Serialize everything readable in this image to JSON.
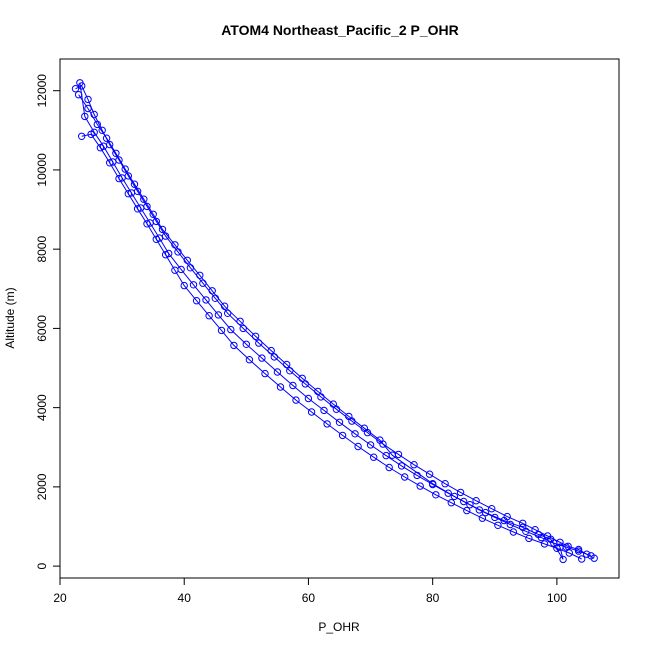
{
  "chart_data": {
    "type": "scatter",
    "title": "ATOM4 Northeast_Pacific_2 P_OHR",
    "xlabel": "P_OHR",
    "ylabel": "Altitude (m)",
    "xlim": [
      20,
      110
    ],
    "ylim": [
      -300,
      12800
    ],
    "x_ticks": [
      20,
      40,
      60,
      80,
      100
    ],
    "y_ticks": [
      0,
      2000,
      4000,
      6000,
      8000,
      10000,
      12000
    ],
    "grid": false,
    "legend": "none",
    "series_color": "#0000ff",
    "marker": "open-circle",
    "connected": true,
    "series": [
      {
        "x": [
          106,
          104.8,
          103.5,
          101.8,
          100.5,
          98.5,
          96.5,
          94.5,
          92,
          89.5,
          87,
          84.5,
          82,
          79.5,
          77,
          74.5,
          72,
          69.5,
          67,
          64.5,
          62,
          59.5,
          57,
          54.5,
          52,
          49.5,
          47,
          45,
          43,
          41,
          39,
          37,
          35.5,
          34,
          32.5,
          31,
          29.5,
          28,
          26.8,
          25.5,
          24.5,
          23.5,
          22.5
        ],
        "y": [
          200,
          300,
          420,
          500,
          600,
          760,
          920,
          1080,
          1250,
          1450,
          1650,
          1860,
          2080,
          2320,
          2560,
          2820,
          3080,
          3370,
          3660,
          3960,
          4270,
          4600,
          4930,
          5280,
          5630,
          6000,
          6380,
          6760,
          7140,
          7530,
          7930,
          8330,
          8700,
          9080,
          9460,
          9850,
          10250,
          10640,
          11000,
          11400,
          11780,
          12120,
          12050
        ]
      },
      {
        "x": [
          105.5,
          103.5,
          101.5,
          99.5,
          97.5,
          95,
          92.5,
          90,
          87.5,
          85,
          82.5,
          80,
          77.5,
          75,
          72.5,
          70,
          67.5,
          65,
          62.5,
          60,
          57.5,
          55,
          52.5,
          50,
          47.5,
          45.5,
          43.5,
          41.5,
          39.5,
          37.5,
          36,
          34.5,
          33,
          31.5,
          30,
          28.5,
          27,
          25.5,
          24,
          23.2
        ],
        "y": [
          260,
          380,
          480,
          580,
          720,
          880,
          1050,
          1230,
          1420,
          1630,
          1840,
          2060,
          2290,
          2530,
          2790,
          3060,
          3340,
          3630,
          3930,
          4230,
          4560,
          4900,
          5250,
          5600,
          5970,
          6340,
          6720,
          7100,
          7490,
          7890,
          8280,
          8660,
          9040,
          9420,
          9800,
          10200,
          10600,
          10950,
          11350,
          12200
        ]
      },
      {
        "x": [
          104,
          102,
          100,
          98,
          95.5,
          93,
          90.5,
          88,
          85.5,
          83,
          80.5,
          78,
          75.5,
          73,
          70.5,
          68,
          65.5,
          63,
          60.5,
          58,
          55.5,
          53,
          50.5,
          48,
          46,
          44,
          42,
          40,
          38.5,
          37,
          35.5,
          34,
          32.5,
          31,
          29.5,
          28,
          26.5,
          25,
          23.5
        ],
        "y": [
          180,
          330,
          450,
          560,
          700,
          860,
          1030,
          1210,
          1400,
          1600,
          1800,
          2020,
          2250,
          2490,
          2750,
          3020,
          3300,
          3590,
          3890,
          4190,
          4520,
          4860,
          5210,
          5570,
          5950,
          6320,
          6700,
          7080,
          7470,
          7860,
          8250,
          8640,
          9020,
          9400,
          9780,
          10180,
          10560,
          10900,
          10850
        ]
      },
      {
        "x": [
          100.5,
          101,
          99,
          97,
          94.5,
          91.5,
          88.5,
          86,
          83.5,
          80,
          73.5,
          71.5,
          69,
          66.5,
          64,
          61.5,
          59,
          56.5,
          54,
          51.5,
          49,
          46.5,
          44.5,
          42.5,
          40.5,
          38.5,
          36.5,
          35,
          33.5,
          32,
          30.5,
          29,
          27.5,
          26,
          24.5,
          23
        ],
        "y": [
          480,
          170,
          680,
          800,
          980,
          1150,
          1350,
          1550,
          1760,
          2080,
          2800,
          3180,
          3480,
          3780,
          4090,
          4410,
          4740,
          5090,
          5440,
          5800,
          6180,
          6560,
          6950,
          7340,
          7720,
          8110,
          8500,
          8880,
          9260,
          9640,
          10020,
          10420,
          10800,
          11150,
          11550,
          11900
        ]
      }
    ]
  }
}
